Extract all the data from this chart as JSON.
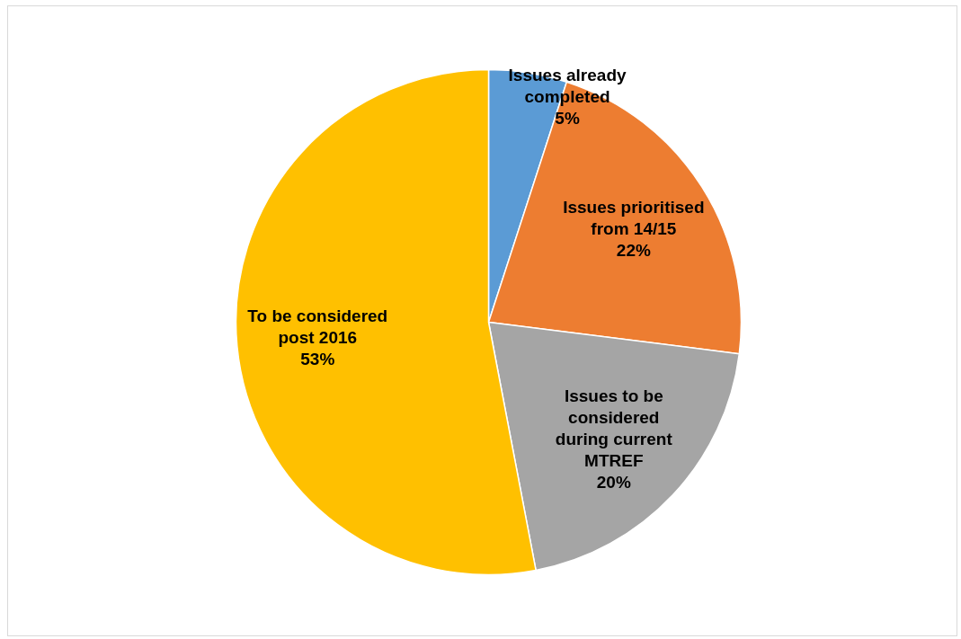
{
  "chart_data": {
    "type": "pie",
    "categories": [
      "Issues already completed",
      "Issues prioritised from 14/15",
      "Issues to be considered during current MTREF",
      "To be considered post 2016"
    ],
    "values": [
      5,
      22,
      20,
      53
    ],
    "value_labels": [
      "5%",
      "22%",
      "20%",
      "53%"
    ],
    "colors": [
      "#5b9bd5",
      "#ed7d31",
      "#a5a5a5",
      "#ffc000"
    ],
    "data_labels": true,
    "legend": false
  }
}
